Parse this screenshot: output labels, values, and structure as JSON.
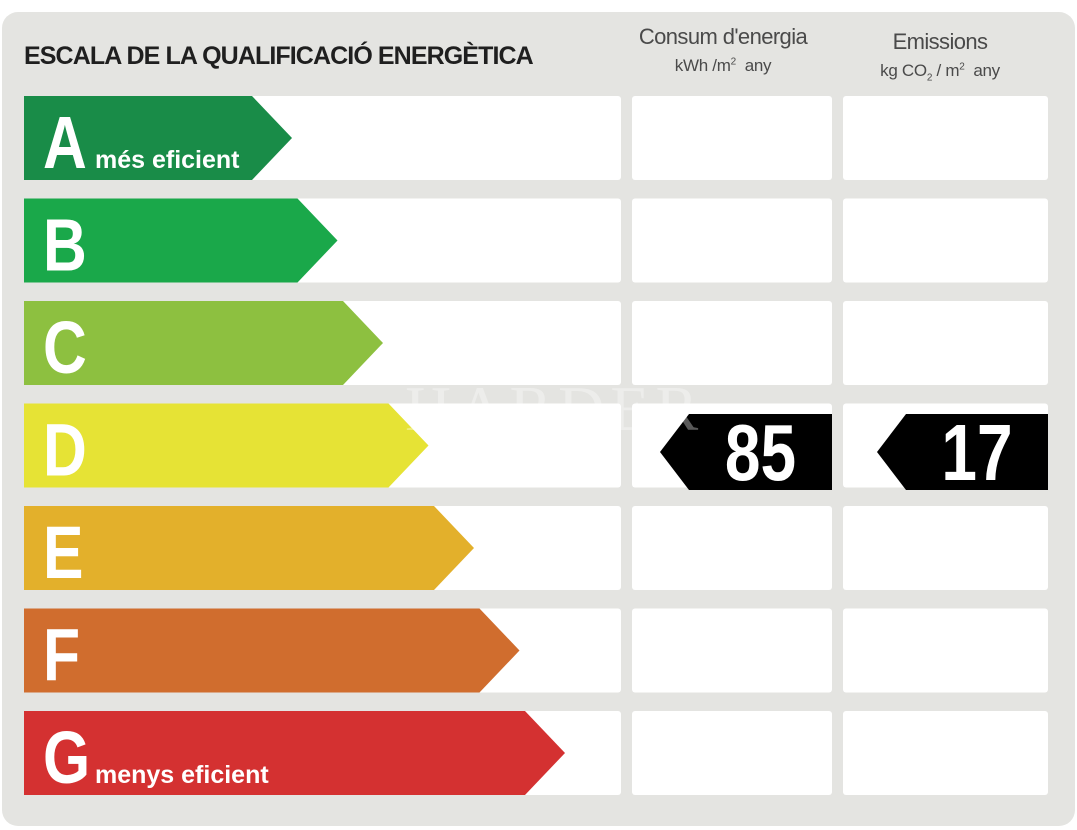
{
  "title": "ESCALA DE LA QUALIFICACIÓ ENERGÈTICA",
  "columns": {
    "energy": {
      "label": "Consum d'energia",
      "unit_prefix": "kWh /m",
      "unit_sup": "2",
      "unit_suffix": "any"
    },
    "emissions": {
      "label": "Emissions",
      "unit_prefix": "kg CO",
      "unit_sub": "2",
      "unit_mid": " / m",
      "unit_sup": "2",
      "unit_suffix": "any"
    }
  },
  "watermark": "HARDER",
  "chart_data": {
    "type": "table",
    "bands": [
      {
        "letter": "A",
        "note": "més eficient",
        "color": "#198c48"
      },
      {
        "letter": "B",
        "note": "",
        "color": "#1aa84a"
      },
      {
        "letter": "C",
        "note": "",
        "color": "#8dc040"
      },
      {
        "letter": "D",
        "note": "",
        "color": "#e6e335"
      },
      {
        "letter": "E",
        "note": "",
        "color": "#e3b02b"
      },
      {
        "letter": "F",
        "note": "",
        "color": "#d06d2e"
      },
      {
        "letter": "G",
        "note": "menys eficient",
        "color": "#d43131"
      }
    ],
    "rating": "D",
    "energy_value": 85,
    "emissions_value": 17
  }
}
